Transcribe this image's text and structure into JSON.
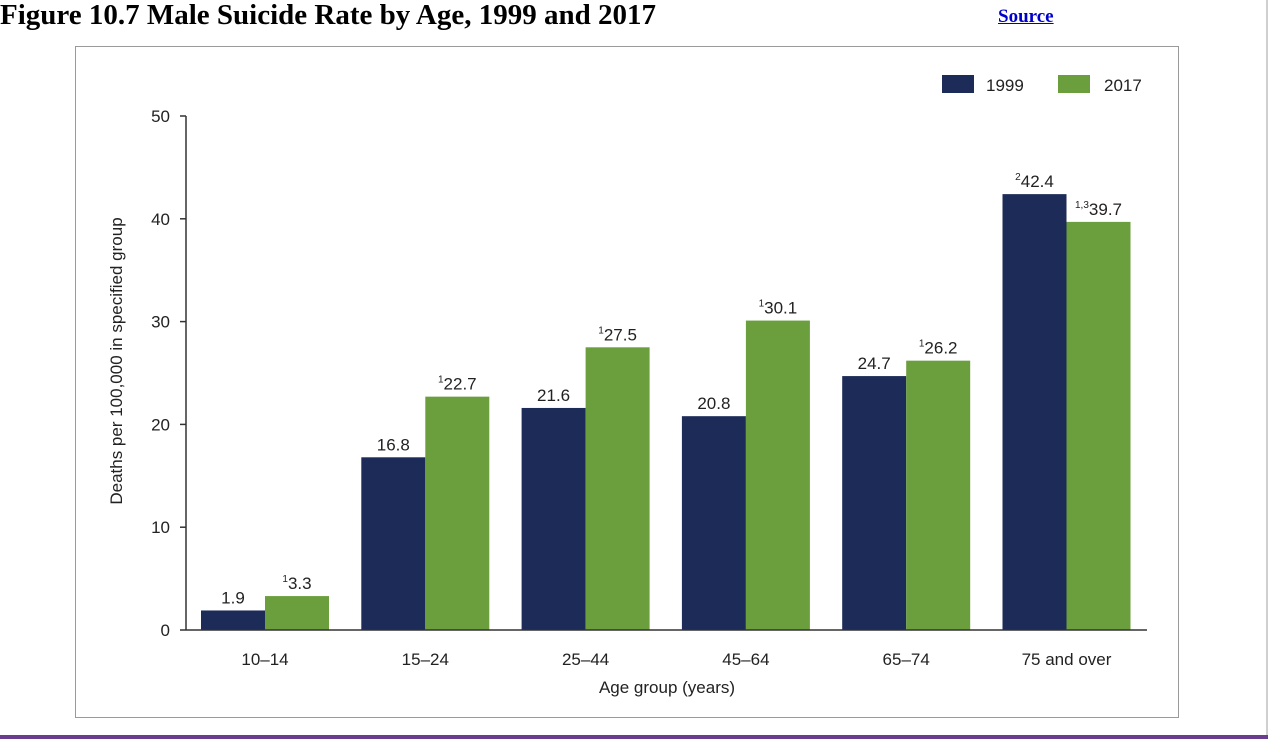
{
  "page": {
    "title": "Figure 10.7 Male Suicide Rate by Age, 1999 and 2017",
    "source_link": "Source"
  },
  "colors": {
    "series_1999": "#1c2b57",
    "series_2017": "#6b9e3d",
    "axis": "#333333",
    "text": "#222222",
    "frame": "#9a9a9a",
    "bottom_rule": "#6a3d8f",
    "link": "#0000cc"
  },
  "chart_data": {
    "type": "bar",
    "title": "",
    "xlabel": "Age group (years)",
    "ylabel": "Deaths per 100,000 in specified group",
    "ylim": [
      0,
      50
    ],
    "yticks": [
      0,
      10,
      20,
      30,
      40,
      50
    ],
    "grid": false,
    "legend_position": "top-right",
    "categories": [
      "10–14",
      "15–24",
      "25–44",
      "45–64",
      "65–74",
      "75 and over"
    ],
    "series": [
      {
        "name": "1999",
        "values": [
          1.9,
          16.8,
          21.6,
          20.8,
          24.7,
          42.4
        ],
        "label_prefixes": [
          "",
          "",
          "",
          "",
          "",
          "2"
        ]
      },
      {
        "name": "2017",
        "values": [
          3.3,
          22.7,
          27.5,
          30.1,
          26.2,
          39.7
        ],
        "label_prefixes": [
          "1",
          "1",
          "1",
          "1",
          "1",
          "1,3"
        ]
      }
    ]
  }
}
